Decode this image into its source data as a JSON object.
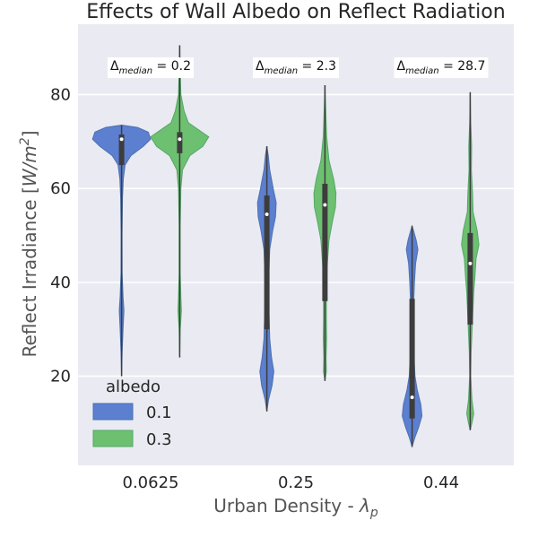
{
  "chart_data": {
    "type": "violin",
    "title": "Effects of Wall Albedo on Reflect Radiation",
    "xlabel_main": "Urban Density - ",
    "xlabel_symbol": "λ",
    "xlabel_sub": "p",
    "ylabel_main": "Reflect Irradiance [",
    "ylabel_unit": "W/m",
    "ylabel_exp": "2",
    "ylabel_close": "]",
    "categories": [
      "0.0625",
      "0.25",
      "0.44"
    ],
    "ylim": [
      1,
      95
    ],
    "yticks": [
      20,
      40,
      60,
      80
    ],
    "grid": true,
    "legend": {
      "title": "albedo",
      "placement": "lower-left",
      "entries": [
        "0.1",
        "0.3"
      ]
    },
    "annotations": [
      {
        "prefix": "Δ",
        "sub": "median",
        "value": " = 0.2"
      },
      {
        "prefix": "Δ",
        "sub": "median",
        "value": " = 2.3"
      },
      {
        "prefix": "Δ",
        "sub": "median",
        "value": " = 28.7"
      }
    ],
    "series": [
      {
        "name": "0.1",
        "color": "#4c72b0",
        "fill": "#5c7fd0",
        "violins": [
          {
            "min": 20,
            "max": 73.5,
            "q1": 65,
            "median": 70.5,
            "q3": 71.5,
            "density": [
              [
                20,
                0.0
              ],
              [
                25,
                0.02
              ],
              [
                30,
                0.05
              ],
              [
                34,
                0.08
              ],
              [
                37,
                0.05
              ],
              [
                42,
                0.02
              ],
              [
                50,
                0.015
              ],
              [
                58,
                0.03
              ],
              [
                62,
                0.06
              ],
              [
                65,
                0.12
              ],
              [
                67,
                0.32
              ],
              [
                69,
                0.75
              ],
              [
                70.5,
                1.0
              ],
              [
                72,
                0.92
              ],
              [
                73,
                0.55
              ],
              [
                73.5,
                0.0
              ]
            ]
          },
          {
            "min": 12.5,
            "max": 69,
            "q1": 30,
            "median": 54.5,
            "q3": 58.5,
            "density": [
              [
                12.5,
                0.0
              ],
              [
                15,
                0.06
              ],
              [
                18,
                0.18
              ],
              [
                21,
                0.24
              ],
              [
                24,
                0.16
              ],
              [
                28,
                0.1
              ],
              [
                32,
                0.08
              ],
              [
                37,
                0.06
              ],
              [
                42,
                0.07
              ],
              [
                47,
                0.1
              ],
              [
                51,
                0.2
              ],
              [
                54,
                0.3
              ],
              [
                57,
                0.32
              ],
              [
                60,
                0.22
              ],
              [
                64,
                0.1
              ],
              [
                67,
                0.05
              ],
              [
                69,
                0.0
              ]
            ]
          },
          {
            "min": 5,
            "max": 52,
            "q1": 11,
            "median": 15.5,
            "q3": 36.5,
            "density": [
              [
                5,
                0.0
              ],
              [
                7,
                0.1
              ],
              [
                9,
                0.22
              ],
              [
                11.5,
                0.34
              ],
              [
                14,
                0.3
              ],
              [
                17,
                0.18
              ],
              [
                20,
                0.1
              ],
              [
                25,
                0.06
              ],
              [
                30,
                0.05
              ],
              [
                35,
                0.05
              ],
              [
                40,
                0.08
              ],
              [
                44,
                0.12
              ],
              [
                47,
                0.2
              ],
              [
                49,
                0.14
              ],
              [
                51,
                0.05
              ],
              [
                52,
                0.0
              ]
            ]
          }
        ]
      },
      {
        "name": "0.3",
        "color": "#55a868",
        "fill": "#6dc070",
        "violins": [
          {
            "min": 24,
            "max": 90.5,
            "q1": 67.5,
            "median": 70.5,
            "q3": 72,
            "density": [
              [
                24,
                0.0
              ],
              [
                30,
                0.02
              ],
              [
                34,
                0.06
              ],
              [
                37,
                0.04
              ],
              [
                42,
                0.02
              ],
              [
                52,
                0.02
              ],
              [
                60,
                0.04
              ],
              [
                64,
                0.1
              ],
              [
                67,
                0.35
              ],
              [
                69,
                0.8
              ],
              [
                71,
                1.0
              ],
              [
                72.5,
                0.65
              ],
              [
                74,
                0.3
              ],
              [
                76.5,
                0.15
              ],
              [
                80,
                0.04
              ],
              [
                85,
                0.02
              ],
              [
                90.5,
                0.0
              ]
            ]
          },
          {
            "min": 19,
            "max": 82,
            "q1": 36,
            "median": 56.5,
            "q3": 61,
            "density": [
              [
                19,
                0.0
              ],
              [
                21,
                0.05
              ],
              [
                24,
                0.04
              ],
              [
                28,
                0.06
              ],
              [
                32,
                0.05
              ],
              [
                37,
                0.05
              ],
              [
                43,
                0.07
              ],
              [
                49,
                0.14
              ],
              [
                53,
                0.26
              ],
              [
                56,
                0.36
              ],
              [
                59,
                0.38
              ],
              [
                62,
                0.3
              ],
              [
                66,
                0.14
              ],
              [
                71,
                0.06
              ],
              [
                76,
                0.03
              ],
              [
                82,
                0.0
              ]
            ]
          },
          {
            "min": 8.5,
            "max": 80.5,
            "q1": 31,
            "median": 44,
            "q3": 50.5,
            "density": [
              [
                8.5,
                0.0
              ],
              [
                10,
                0.06
              ],
              [
                12,
                0.12
              ],
              [
                15,
                0.06
              ],
              [
                20,
                0.02
              ],
              [
                25,
                0.03
              ],
              [
                31,
                0.07
              ],
              [
                35,
                0.1
              ],
              [
                38,
                0.12
              ],
              [
                41,
                0.16
              ],
              [
                45,
                0.2
              ],
              [
                48,
                0.3
              ],
              [
                51,
                0.24
              ],
              [
                55,
                0.1
              ],
              [
                59,
                0.08
              ],
              [
                64,
                0.04
              ],
              [
                69,
                0.05
              ],
              [
                74,
                0.02
              ],
              [
                80.5,
                0.0
              ]
            ]
          }
        ]
      }
    ]
  }
}
